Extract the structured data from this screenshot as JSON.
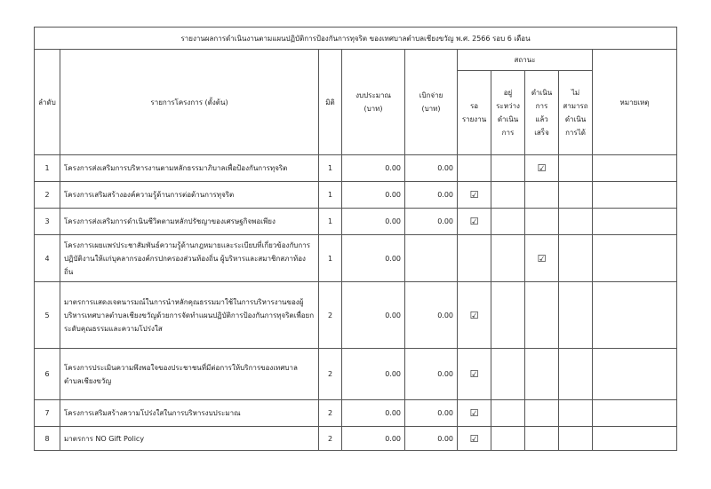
{
  "title": "รายงานผลการดำเนินงานตามแผนปฏิบัติการป้องกันการทุจริต ของเทศบาลตำบลเชียงขวัญ พ.ศ. 2566 รอบ 6 เดือน",
  "headers": {
    "no": "ลำดับ",
    "project": "รายการโครงการ (ตั้งต้น)",
    "dimension": "มิติ",
    "budget": "งบประมาณ (บาท)",
    "spent": "เบิกจ่าย (บาท)",
    "status": "สถานะ",
    "waiting": "รอ รายงาน",
    "in_progress": "อยู่ระหว่าง ดำเนินการ",
    "completed": "ดำเนินการ แล้วเสร็จ",
    "unable": "ไม่สามารถ ดำเนินการได้",
    "remark": "หมายเหตุ"
  },
  "rows": [
    {
      "no": "1",
      "project": "โครงการส่งเสริมการบริหารงานตามหลักธรรมาภิบาลเพื่อป้องกันการทุจริต",
      "dim": "1",
      "budget": "0.00",
      "spent": "0.00",
      "status": "completed"
    },
    {
      "no": "2",
      "project": "โครงการเสริมสร้างองค์ความรู้ด้านการต่อต้านการทุจริต",
      "dim": "1",
      "budget": "0.00",
      "spent": "0.00",
      "status": "waiting"
    },
    {
      "no": "3",
      "project": "โครงการส่งเสริมการดำเนินชีวิตตามหลักปรัชญาของเศรษฐกิจพอเพียง",
      "dim": "1",
      "budget": "0.00",
      "spent": "0.00",
      "status": "waiting"
    },
    {
      "no": "4",
      "project": "โครงการเผยแพร่ประชาสัมพันธ์ความรู้ด้านกฎหมายและระเบียบที่เกี่ยวข้องกับการปฏิบัติงานให้แก่บุคลากรองค์กรปกครองส่วนท้องถิ่น ผู้บริหารและสมาชิกสภาท้องถิ่น",
      "dim": "1",
      "budget": "0.00",
      "spent": "",
      "status": "completed"
    },
    {
      "no": "5",
      "project": "มาตรการแสดงเจตนารมณ์ในการนำหลักคุณธรรมมาใช้ในการบริหารงานของผู้บริหารเทศบาลตำบลเชียงขวัญด้วยการจัดทำแผนปฏิบัติการป้องกันการทุจริตเพื่อยกระดับคุณธรรมและความโปร่งใส",
      "dim": "2",
      "budget": "0.00",
      "spent": "0.00",
      "status": "waiting"
    },
    {
      "no": "6",
      "project": "โครงการประเมินความพึงพอใจของประชาชนที่มีต่อการให้บริการของเทศบาลตำบลเชียงขวัญ",
      "dim": "2",
      "budget": "0.00",
      "spent": "0.00",
      "status": "waiting"
    },
    {
      "no": "7",
      "project": "โครงการเสริมสร้างความโปร่งใสในการบริหารงบประมาณ",
      "dim": "2",
      "budget": "0.00",
      "spent": "0.00",
      "status": "waiting"
    },
    {
      "no": "8",
      "project": "มาตรการ NO Gift Policy",
      "dim": "2",
      "budget": "0.00",
      "spent": "0.00",
      "status": "waiting"
    }
  ],
  "check_icon": "checkbox-checked-icon"
}
